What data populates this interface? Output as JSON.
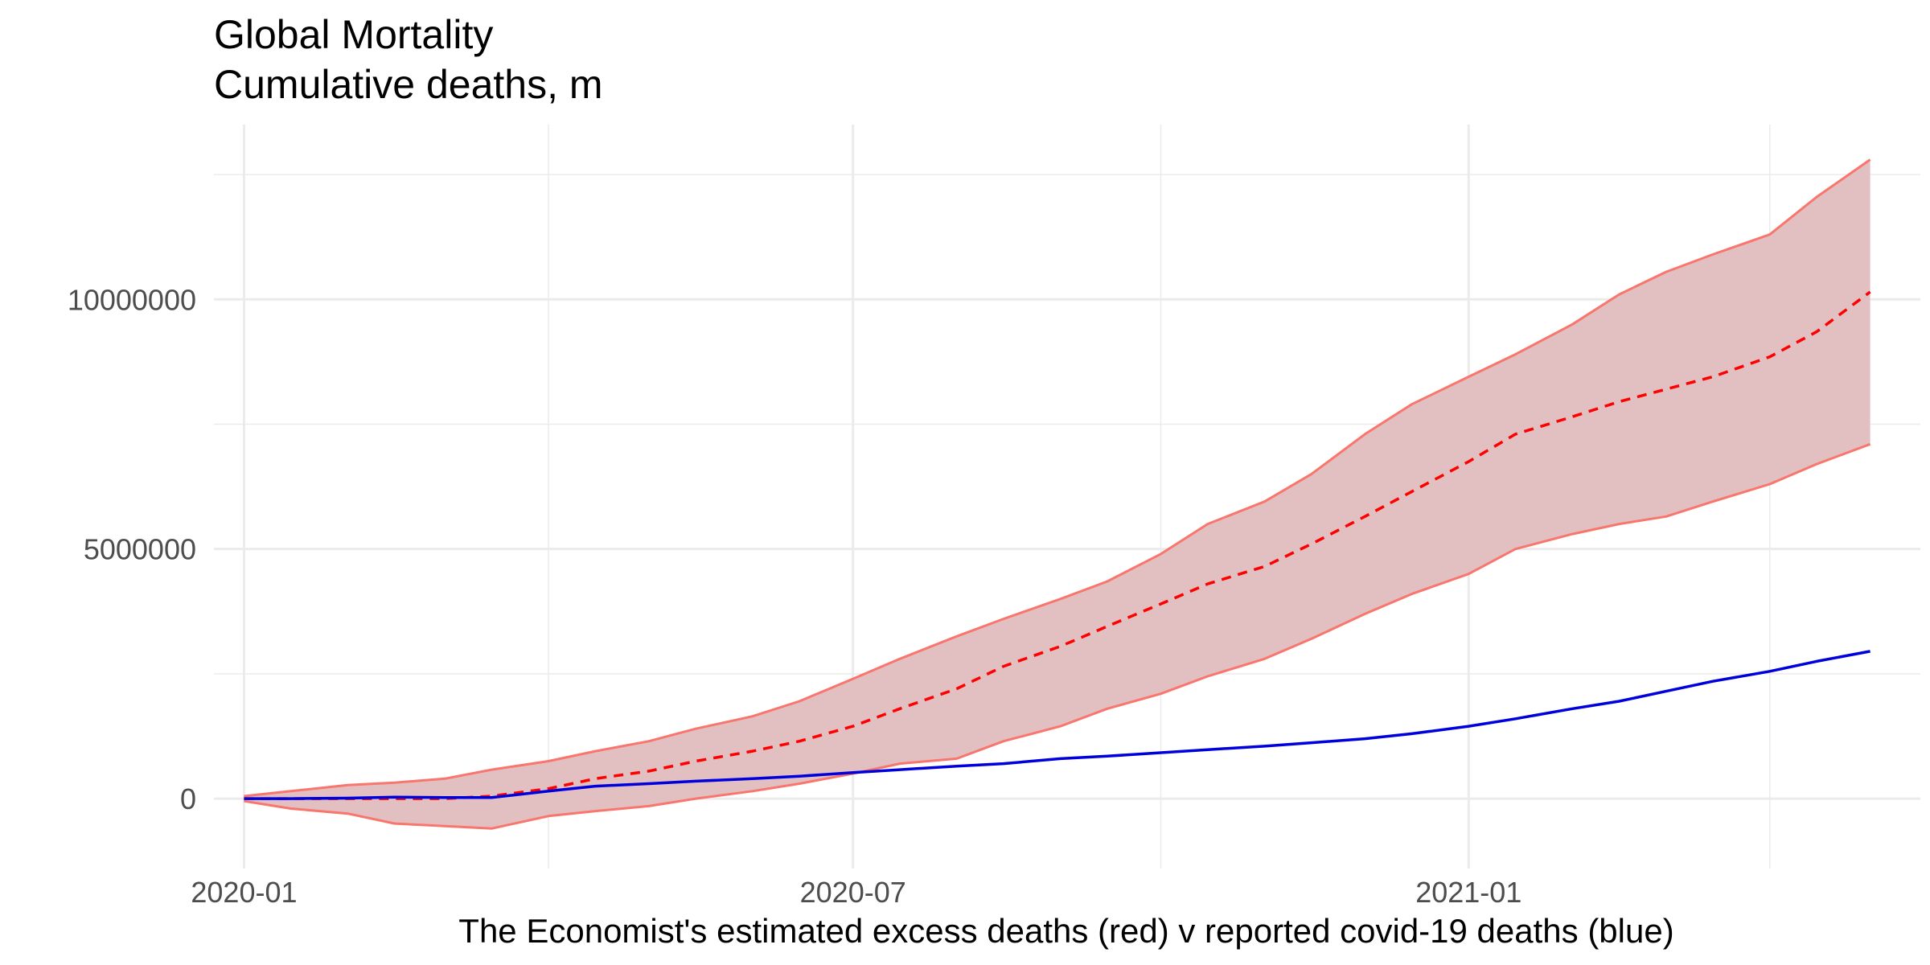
{
  "chart_data": {
    "type": "area",
    "title": "Global Mortality",
    "subtitle": "Cumulative deaths, m",
    "xlabel": "The Economist's estimated excess deaths (red) v reported covid-19 deaths (blue)",
    "ylabel": "",
    "x_axis": {
      "type": "date",
      "range": [
        "2019-12-23",
        "2021-05-16"
      ],
      "ticks": [
        "2020-01-01",
        "2020-07-01",
        "2021-01-01"
      ],
      "tick_labels": [
        "2020-01",
        "2020-07",
        "2021-01"
      ],
      "minor_ticks": [
        "2020-04-01",
        "2020-10-01",
        "2021-04-01"
      ]
    },
    "y_axis": {
      "range": [
        -1400000,
        13500000
      ],
      "ticks": [
        0,
        5000000,
        10000000
      ],
      "tick_labels": [
        "0",
        "5000000",
        "10000000"
      ],
      "minor_ticks": [
        2500000,
        7500000,
        12500000
      ]
    },
    "grid": true,
    "legend": "none",
    "colors": {
      "estimate_line": "#ff0000",
      "band_line": "#f8766d",
      "band_fill": "#e2bfc0",
      "reported_line": "#0000dd",
      "grid": "#ebebeb"
    },
    "series": [
      {
        "key": "excess-upper",
        "role": "band-upper",
        "x": [
          "2020-01-01",
          "2020-01-15",
          "2020-02-01",
          "2020-02-15",
          "2020-03-01",
          "2020-03-15",
          "2020-04-01",
          "2020-04-15",
          "2020-05-01",
          "2020-05-15",
          "2020-06-01",
          "2020-06-15",
          "2020-07-01",
          "2020-07-15",
          "2020-08-01",
          "2020-08-15",
          "2020-09-01",
          "2020-09-15",
          "2020-10-01",
          "2020-10-15",
          "2020-11-01",
          "2020-11-15",
          "2020-12-01",
          "2020-12-15",
          "2021-01-01",
          "2021-01-15",
          "2021-02-01",
          "2021-02-15",
          "2021-03-01",
          "2021-03-15",
          "2021-04-01",
          "2021-04-15",
          "2021-05-01"
        ],
        "values": [
          50000,
          150000,
          270000,
          320000,
          400000,
          580000,
          750000,
          950000,
          1150000,
          1400000,
          1650000,
          1950000,
          2400000,
          2800000,
          3250000,
          3600000,
          4000000,
          4350000,
          4900000,
          5500000,
          5950000,
          6500000,
          7300000,
          7900000,
          8450000,
          8900000,
          9500000,
          10100000,
          10550000,
          10900000,
          11300000,
          12050000,
          12800000
        ]
      },
      {
        "key": "excess-lower",
        "role": "band-lower",
        "x": [
          "2020-01-01",
          "2020-01-15",
          "2020-02-01",
          "2020-02-15",
          "2020-03-01",
          "2020-03-15",
          "2020-04-01",
          "2020-04-15",
          "2020-05-01",
          "2020-05-15",
          "2020-06-01",
          "2020-06-15",
          "2020-07-01",
          "2020-07-15",
          "2020-08-01",
          "2020-08-15",
          "2020-09-01",
          "2020-09-15",
          "2020-10-01",
          "2020-10-15",
          "2020-11-01",
          "2020-11-15",
          "2020-12-01",
          "2020-12-15",
          "2021-01-01",
          "2021-01-15",
          "2021-02-01",
          "2021-02-15",
          "2021-03-01",
          "2021-03-15",
          "2021-04-01",
          "2021-04-15",
          "2021-05-01"
        ],
        "values": [
          -50000,
          -200000,
          -300000,
          -500000,
          -550000,
          -600000,
          -350000,
          -250000,
          -150000,
          0,
          150000,
          300000,
          500000,
          700000,
          800000,
          1150000,
          1450000,
          1800000,
          2100000,
          2450000,
          2800000,
          3200000,
          3700000,
          4100000,
          4500000,
          5000000,
          5300000,
          5500000,
          5650000,
          5950000,
          6300000,
          6700000,
          7100000
        ]
      },
      {
        "key": "excess-estimate",
        "role": "estimate",
        "x": [
          "2020-01-01",
          "2020-01-15",
          "2020-02-01",
          "2020-02-15",
          "2020-03-01",
          "2020-03-15",
          "2020-04-01",
          "2020-04-15",
          "2020-05-01",
          "2020-05-15",
          "2020-06-01",
          "2020-06-15",
          "2020-07-01",
          "2020-07-15",
          "2020-08-01",
          "2020-08-15",
          "2020-09-01",
          "2020-09-15",
          "2020-10-01",
          "2020-10-15",
          "2020-11-01",
          "2020-11-15",
          "2020-12-01",
          "2020-12-15",
          "2021-01-01",
          "2021-01-15",
          "2021-02-01",
          "2021-02-15",
          "2021-03-01",
          "2021-03-15",
          "2021-04-01",
          "2021-04-15",
          "2021-05-01"
        ],
        "values": [
          0,
          0,
          0,
          0,
          0,
          50000,
          200000,
          400000,
          550000,
          750000,
          950000,
          1150000,
          1450000,
          1800000,
          2200000,
          2650000,
          3050000,
          3450000,
          3900000,
          4300000,
          4650000,
          5100000,
          5650000,
          6150000,
          6750000,
          7300000,
          7650000,
          7950000,
          8200000,
          8450000,
          8850000,
          9350000,
          10150000
        ]
      },
      {
        "key": "reported",
        "role": "reported",
        "x": [
          "2020-01-01",
          "2020-01-15",
          "2020-02-01",
          "2020-02-15",
          "2020-03-01",
          "2020-03-15",
          "2020-04-01",
          "2020-04-15",
          "2020-05-01",
          "2020-05-15",
          "2020-06-01",
          "2020-06-15",
          "2020-07-01",
          "2020-07-15",
          "2020-08-01",
          "2020-08-15",
          "2020-09-01",
          "2020-09-15",
          "2020-10-01",
          "2020-10-15",
          "2020-11-01",
          "2020-11-15",
          "2020-12-01",
          "2020-12-15",
          "2021-01-01",
          "2021-01-15",
          "2021-02-01",
          "2021-02-15",
          "2021-03-01",
          "2021-03-15",
          "2021-04-01",
          "2021-04-15",
          "2021-05-01"
        ],
        "values": [
          0,
          0,
          10000,
          30000,
          20000,
          20000,
          150000,
          250000,
          300000,
          350000,
          400000,
          450000,
          520000,
          580000,
          650000,
          700000,
          800000,
          850000,
          920000,
          980000,
          1050000,
          1120000,
          1200000,
          1300000,
          1450000,
          1600000,
          1800000,
          1950000,
          2150000,
          2350000,
          2550000,
          2750000,
          2950000
        ]
      }
    ]
  }
}
